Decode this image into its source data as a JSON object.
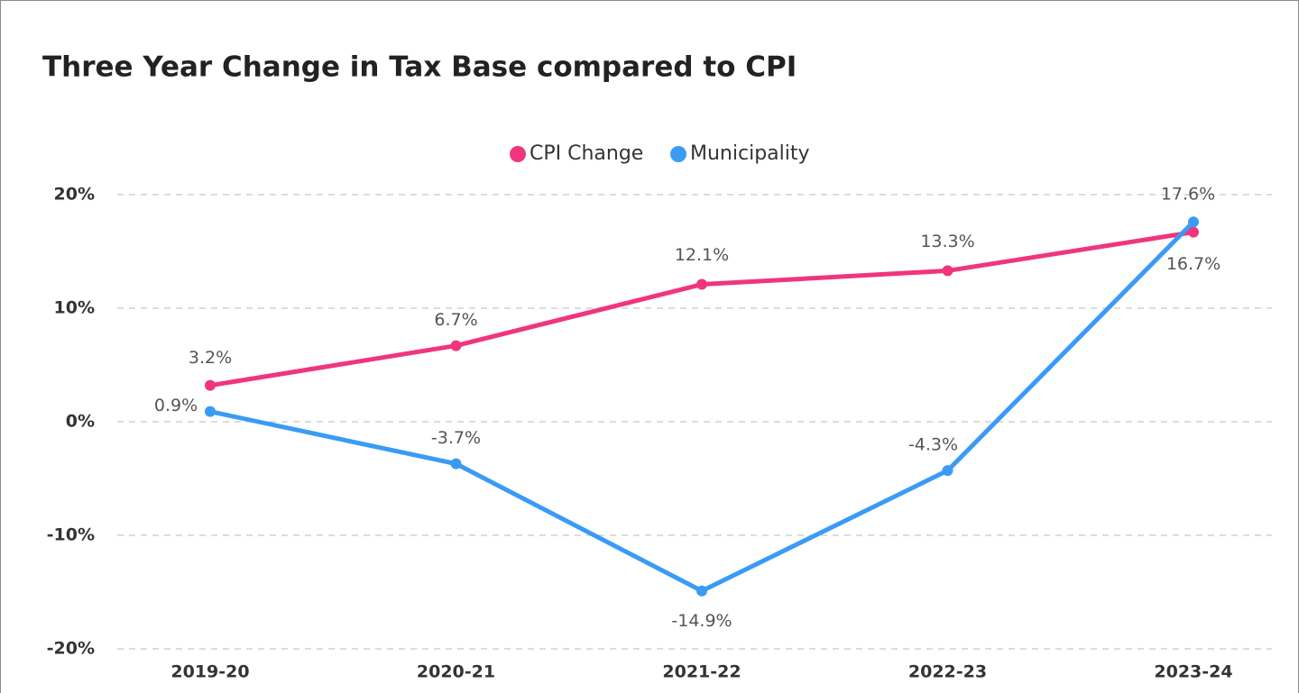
{
  "chart_data": {
    "type": "line",
    "title": "Three Year Change in Tax Base compared to CPI",
    "categories": [
      "2019-20",
      "2020-21",
      "2021-22",
      "2022-23",
      "2023-24"
    ],
    "series": [
      {
        "name": "CPI Change",
        "color": "#f0357e",
        "values": [
          3.2,
          6.7,
          12.1,
          13.3,
          16.7
        ],
        "value_labels": [
          "3.2%",
          "6.7%",
          "12.1%",
          "13.3%",
          "16.7%"
        ]
      },
      {
        "name": "Municipality",
        "color": "#3a9bf5",
        "values": [
          0.9,
          -3.7,
          -14.9,
          -4.3,
          17.6
        ],
        "value_labels": [
          "0.9%",
          "-3.7%",
          "-14.9%",
          "-4.3%",
          "17.6%"
        ]
      }
    ],
    "ylim": [
      -20,
      20
    ],
    "yticks": [
      {
        "value": -20,
        "label": "-20%"
      },
      {
        "value": -10,
        "label": "-10%"
      },
      {
        "value": 0,
        "label": "0%"
      },
      {
        "value": 10,
        "label": "10%"
      },
      {
        "value": 20,
        "label": "20%"
      }
    ],
    "grid": true,
    "legend": "top"
  }
}
